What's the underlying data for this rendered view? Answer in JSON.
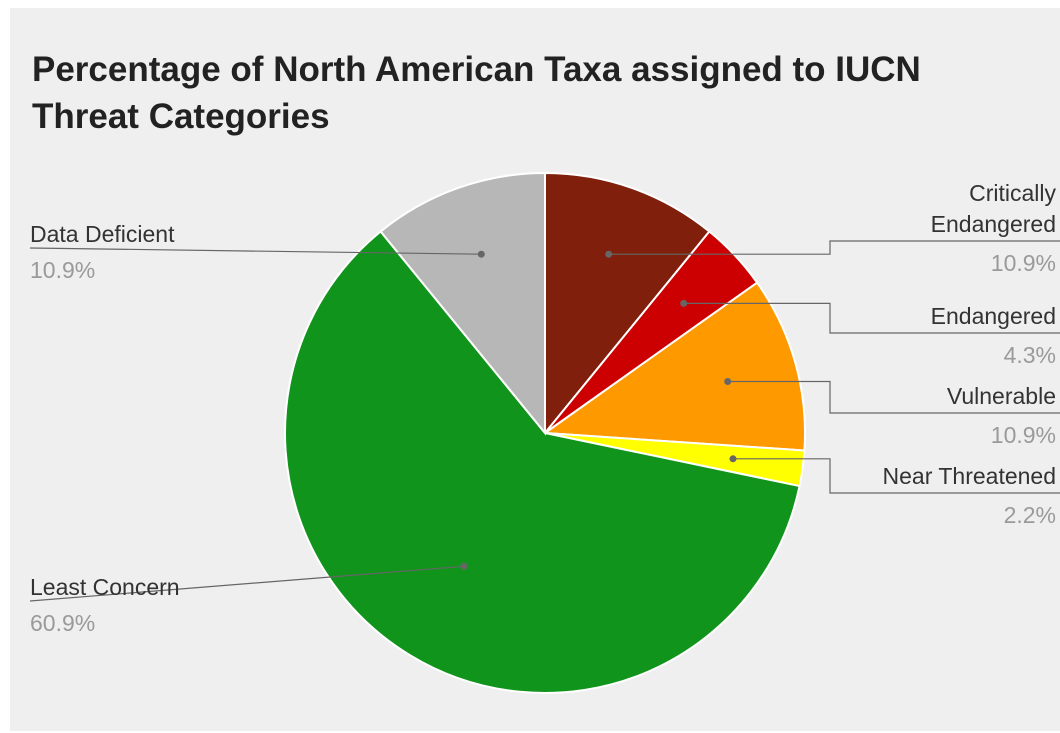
{
  "chart_data": {
    "type": "pie",
    "title": "Percentage of North American Taxa assigned to IUCN Threat Categories",
    "legend": "labeled",
    "slices": [
      {
        "label": [
          "Critically",
          "Endangered"
        ],
        "value": 10.9,
        "display": "10.9%",
        "color": "#7f1f0c",
        "side": "right"
      },
      {
        "label": [
          "Endangered"
        ],
        "value": 4.3,
        "display": "4.3%",
        "color": "#cc0000",
        "side": "right"
      },
      {
        "label": [
          "Vulnerable"
        ],
        "value": 10.9,
        "display": "10.9%",
        "color": "#ff9900",
        "side": "right"
      },
      {
        "label": [
          "Near Threatened"
        ],
        "value": 2.2,
        "display": "2.2%",
        "color": "#ffff00",
        "side": "right"
      },
      {
        "label": [
          "Least Concern"
        ],
        "value": 60.9,
        "display": "60.9%",
        "color": "#11941c",
        "side": "left"
      },
      {
        "label": [
          "Data Deficient"
        ],
        "value": 10.9,
        "display": "10.9%",
        "color": "#b7b7b7",
        "side": "left"
      }
    ]
  }
}
